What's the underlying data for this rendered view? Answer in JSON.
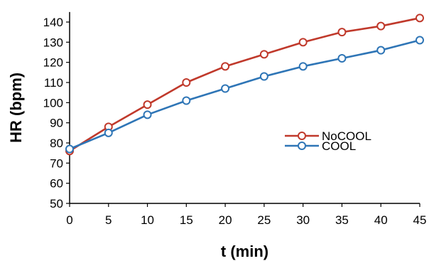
{
  "chart_data": {
    "type": "line",
    "title": "",
    "xlabel": "t (min)",
    "ylabel": "HR (bpm)",
    "x": [
      0,
      5,
      10,
      15,
      20,
      25,
      30,
      35,
      40,
      45
    ],
    "x_tick_labels": [
      "0",
      "5",
      "10",
      "15",
      "20",
      "25",
      "30",
      "35",
      "40",
      "45"
    ],
    "y_tick_values": [
      50,
      60,
      70,
      80,
      90,
      100,
      110,
      120,
      130,
      140
    ],
    "y_tick_labels": [
      "50",
      "60",
      "70",
      "80",
      "90",
      "100",
      "110",
      "120",
      "130",
      "140"
    ],
    "xlim": [
      0,
      45
    ],
    "ylim": [
      50,
      145
    ],
    "grid": false,
    "legend_position": "right",
    "series": [
      {
        "name": "NoCOOL",
        "color": "#c0392b",
        "marker": "open-circle",
        "values": [
          76,
          88,
          99,
          110,
          118,
          124,
          130,
          135,
          138,
          142
        ]
      },
      {
        "name": "COOL",
        "color": "#2e75b6",
        "marker": "open-circle",
        "values": [
          77,
          85,
          94,
          101,
          107,
          113,
          118,
          122,
          126,
          131
        ]
      }
    ]
  }
}
